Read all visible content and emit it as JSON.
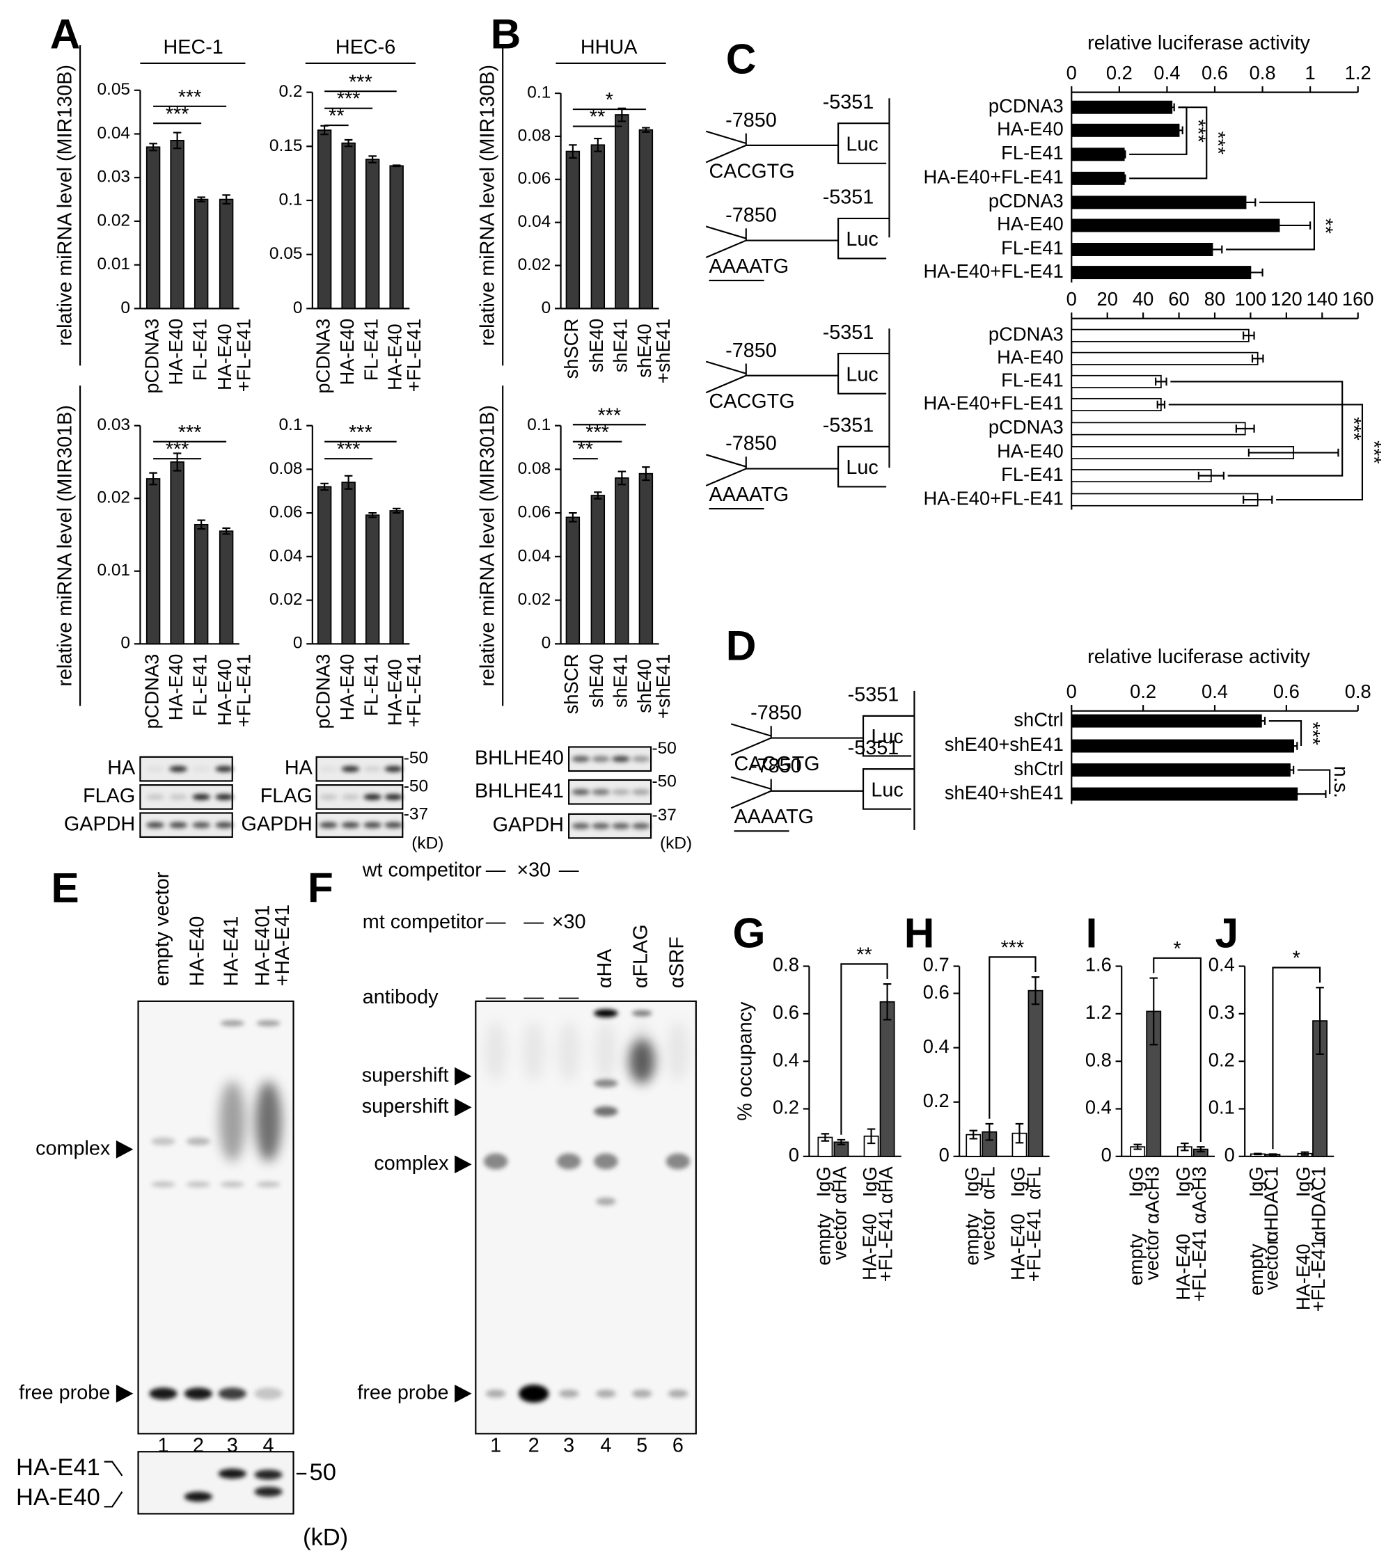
{
  "panel_labels": [
    "A",
    "B",
    "C",
    "D",
    "E",
    "F",
    "G",
    "H",
    "I",
    "J"
  ],
  "chart_data": [
    {
      "type": "bar",
      "title": "HEC-1",
      "ylabel": "relative miRNA level (MIR130B)",
      "categories": [
        "pCDNA3",
        "HA-E40",
        "FL-E41",
        "HA-E40\n+FL-E41"
      ],
      "values": [
        0.037,
        0.0385,
        0.025,
        0.025
      ],
      "errors": [
        0.0008,
        0.0018,
        0.0005,
        0.001
      ],
      "color": "#3a3a3a",
      "ylim": [
        0,
        0.05
      ],
      "yticks": [
        0,
        0.01,
        0.02,
        0.03,
        0.04,
        0.05
      ],
      "sig": [
        {
          "label": "***",
          "pair": [
            0,
            2
          ]
        },
        {
          "label": "***",
          "pair": [
            0,
            3
          ]
        }
      ]
    },
    {
      "type": "bar",
      "title": "HEC-6",
      "categories": [
        "pCDNA3",
        "HA-E40",
        "FL-E41",
        "HA-E40\n+FL-E41"
      ],
      "values": [
        0.165,
        0.153,
        0.138,
        0.132
      ],
      "errors": [
        0.004,
        0.003,
        0.003,
        0.0005
      ],
      "color": "#3a3a3a",
      "ylim": [
        0,
        0.2
      ],
      "yticks": [
        0,
        0.05,
        0.1,
        0.15,
        0.2
      ],
      "sig": [
        {
          "label": "**",
          "pair": [
            0,
            1
          ]
        },
        {
          "label": "***",
          "pair": [
            0,
            2
          ]
        },
        {
          "label": "***",
          "pair": [
            0,
            3
          ]
        }
      ]
    },
    {
      "type": "bar",
      "title": "HHUA",
      "ylabel": "relative miRNA level (MIR130B)",
      "categories": [
        "shSCR",
        "shE40",
        "shE41",
        "shE40\n+shE41"
      ],
      "values": [
        0.073,
        0.076,
        0.09,
        0.083
      ],
      "errors": [
        0.003,
        0.003,
        0.003,
        0.001
      ],
      "color": "#3a3a3a",
      "ylim": [
        0,
        0.1
      ],
      "yticks": [
        0,
        0.02,
        0.04,
        0.06,
        0.08,
        0.1
      ],
      "sig": [
        {
          "label": "**",
          "pair": [
            0,
            2
          ]
        },
        {
          "label": "*",
          "pair": [
            0,
            3
          ]
        }
      ]
    },
    {
      "type": "bar",
      "ylabel": "relative miRNA level (MIR301B)",
      "categories": [
        "pCDNA3",
        "HA-E40",
        "FL-E41",
        "HA-E40\n+FL-E41"
      ],
      "values": [
        0.0227,
        0.025,
        0.0164,
        0.0155
      ],
      "errors": [
        0.0008,
        0.0012,
        0.0006,
        0.0004
      ],
      "color": "#3a3a3a",
      "ylim": [
        0,
        0.03
      ],
      "yticks": [
        0,
        0.01,
        0.02,
        0.03
      ],
      "sig": [
        {
          "label": "***",
          "pair": [
            0,
            2
          ]
        },
        {
          "label": "***",
          "pair": [
            0,
            3
          ]
        }
      ]
    },
    {
      "type": "bar",
      "categories": [
        "pCDNA3",
        "HA-E40",
        "FL-E41",
        "HA-E40\n+FL-E41"
      ],
      "values": [
        0.072,
        0.074,
        0.059,
        0.061
      ],
      "errors": [
        0.0015,
        0.003,
        0.001,
        0.001
      ],
      "color": "#3a3a3a",
      "ylim": [
        0,
        0.1
      ],
      "yticks": [
        0,
        0.02,
        0.04,
        0.06,
        0.08,
        0.1
      ],
      "sig": [
        {
          "label": "***",
          "pair": [
            0,
            2
          ]
        },
        {
          "label": "***",
          "pair": [
            0,
            3
          ]
        }
      ]
    },
    {
      "type": "bar",
      "ylabel": "relative miRNA level (MIR301B)",
      "categories": [
        "shSCR",
        "shE40",
        "shE41",
        "shE40\n+shE41"
      ],
      "values": [
        0.058,
        0.068,
        0.076,
        0.078
      ],
      "errors": [
        0.002,
        0.0015,
        0.003,
        0.003
      ],
      "color": "#3a3a3a",
      "ylim": [
        0,
        0.1
      ],
      "yticks": [
        0,
        0.02,
        0.04,
        0.06,
        0.08,
        0.1
      ],
      "sig": [
        {
          "label": "**",
          "pair": [
            0,
            1
          ]
        },
        {
          "label": "***",
          "pair": [
            0,
            2
          ]
        },
        {
          "label": "***",
          "pair": [
            0,
            3
          ]
        }
      ]
    },
    {
      "type": "hbar",
      "xlabel": "relative luciferase activity",
      "categories": [
        "pCDNA3",
        "HA-E40",
        "FL-E41",
        "HA-E40+FL-E41",
        "pCDNA3",
        "HA-E40",
        "FL-E41",
        "HA-E40+FL-E41"
      ],
      "values": [
        0.42,
        0.45,
        0.22,
        0.22,
        0.73,
        0.87,
        0.59,
        0.75
      ],
      "errors": [
        0.01,
        0.015,
        0.005,
        0.005,
        0.04,
        0.13,
        0.04,
        0.05
      ],
      "color": "#000000",
      "xlim": [
        0,
        1.2
      ],
      "xticks": [
        0,
        0.2,
        0.4,
        0.6,
        0.8,
        1,
        1.2
      ],
      "sig": [
        {
          "label": "***",
          "pair": [
            0,
            2
          ]
        },
        {
          "label": "***",
          "pair": [
            0,
            3
          ]
        },
        {
          "label": "**",
          "pair": [
            4,
            6
          ]
        }
      ]
    },
    {
      "type": "hbar",
      "categories": [
        "pCDNA3",
        "HA-E40",
        "FL-E41",
        "HA-E40+FL-E41",
        "pCDNA3",
        "HA-E40",
        "FL-E41",
        "HA-E40+FL-E41"
      ],
      "values": [
        99,
        104,
        50,
        50,
        97,
        124,
        78,
        104
      ],
      "errors": [
        3,
        3,
        3,
        2,
        5,
        25,
        7,
        8
      ],
      "color": "#ffffff",
      "xlim": [
        0,
        160
      ],
      "xticks": [
        0,
        20,
        40,
        60,
        80,
        100,
        120,
        140,
        160
      ],
      "sig": [
        {
          "label": "***",
          "pair": [
            2,
            6
          ]
        },
        {
          "label": "***",
          "pair": [
            3,
            7
          ]
        }
      ]
    },
    {
      "type": "hbar",
      "xlabel": "relative luciferase activity",
      "categories": [
        "shCtrl",
        "shE40+shE41",
        "shCtrl",
        "shE40+shE41"
      ],
      "values": [
        0.53,
        0.62,
        0.61,
        0.63
      ],
      "errors": [
        0.01,
        0.01,
        0.01,
        0.08
      ],
      "color": "#000000",
      "xlim": [
        0,
        0.8
      ],
      "xticks": [
        0,
        0.2,
        0.4,
        0.6,
        0.8
      ],
      "sig": [
        {
          "label": "***",
          "pair": [
            0,
            1
          ]
        },
        {
          "label": "n.s.",
          "pair": [
            2,
            3
          ]
        }
      ]
    },
    {
      "type": "bar",
      "ylabel": "% occupancy",
      "categories": [
        "IgG",
        "αHA",
        "IgG",
        "αHA"
      ],
      "groups": [
        "empty\nvector",
        "HA-E40\n+FL-E41"
      ],
      "values": [
        0.08,
        0.06,
        0.085,
        0.65
      ],
      "errors": [
        0.015,
        0.01,
        0.03,
        0.075
      ],
      "colors": [
        "#ffffff",
        "#4a4a4a",
        "#ffffff",
        "#4a4a4a"
      ],
      "ylim": [
        0,
        0.8
      ],
      "yticks": [
        0,
        0.2,
        0.4,
        0.6,
        0.8
      ],
      "sig": [
        {
          "label": "**",
          "pair": [
            1,
            3
          ]
        }
      ]
    },
    {
      "type": "bar",
      "categories": [
        "IgG",
        "αFL",
        "IgG",
        "αFL"
      ],
      "groups": [
        "empty\nvector",
        "HA-E40\n+FL-E41"
      ],
      "values": [
        0.08,
        0.09,
        0.085,
        0.61
      ],
      "errors": [
        0.015,
        0.03,
        0.035,
        0.05
      ],
      "colors": [
        "#ffffff",
        "#4a4a4a",
        "#ffffff",
        "#4a4a4a"
      ],
      "ylim": [
        0,
        0.7
      ],
      "yticks": [
        0,
        0.2,
        0.4,
        0.6,
        0.7
      ],
      "sig": [
        {
          "label": "***",
          "pair": [
            1,
            3
          ]
        }
      ]
    },
    {
      "type": "bar",
      "categories": [
        "IgG",
        "αAcH3",
        "IgG",
        "αAcH3"
      ],
      "groups": [
        "empty\nvector",
        "HA-E40\n+FL-E41"
      ],
      "values": [
        0.08,
        1.22,
        0.08,
        0.06
      ],
      "errors": [
        0.02,
        0.28,
        0.03,
        0.02
      ],
      "colors": [
        "#ffffff",
        "#4a4a4a",
        "#ffffff",
        "#4a4a4a"
      ],
      "ylim": [
        0,
        1.6
      ],
      "yticks": [
        0,
        0.4,
        0.8,
        1.2,
        1.6
      ],
      "sig": [
        {
          "label": "*",
          "pair": [
            1,
            3
          ]
        }
      ]
    },
    {
      "type": "bar",
      "categories": [
        "IgG",
        "αHDAC1",
        "IgG",
        "αHDAC1"
      ],
      "groups": [
        "empty\nvector",
        "HA-E40\n+FL-E41"
      ],
      "values": [
        0.005,
        0.004,
        0.006,
        0.285
      ],
      "errors": [
        0.001,
        0.001,
        0.003,
        0.07
      ],
      "colors": [
        "#ffffff",
        "#4a4a4a",
        "#ffffff",
        "#4a4a4a"
      ],
      "ylim": [
        0,
        0.4
      ],
      "yticks": [
        0,
        0.1,
        0.2,
        0.3,
        0.4
      ],
      "sig": [
        {
          "label": "*",
          "pair": [
            1,
            3
          ]
        }
      ]
    }
  ],
  "constructs": [
    {
      "left": "-7850",
      "right": "-5351",
      "box": "Luc",
      "motif": "CACGTG"
    },
    {
      "left": "-7850",
      "right": "-5351",
      "box": "Luc",
      "motif": "AAAATG"
    },
    {
      "left": "-7850",
      "right": "-5351",
      "box": "Luc",
      "motif": "CACGTG"
    },
    {
      "left": "-7850",
      "right": "-5351",
      "box": "Luc",
      "motif": "AAAATG"
    },
    {
      "left": "-7850",
      "right": "-5351",
      "box": "Luc",
      "motif": "CACGTG"
    },
    {
      "left": "-7850",
      "right": "-5351",
      "box": "Luc",
      "motif": "AAAATG"
    }
  ],
  "blots": [
    {
      "rows": [
        "HA",
        "FLAG",
        "GAPDH"
      ]
    },
    {
      "rows": [
        "HA",
        "FLAG",
        "GAPDH"
      ],
      "markers": [
        "-50",
        "-50",
        "-37"
      ],
      "unit": "(kD)"
    },
    {
      "rows": [
        "BHLHE40",
        "BHLHE41",
        "GAPDH"
      ],
      "markers": [
        "-50",
        "-50",
        "-37"
      ],
      "unit": "(kD)"
    }
  ],
  "emsa_e": {
    "lanes": [
      "empty vector",
      "HA-E40",
      "HA-E41",
      "HA-E401\n+HA-E41"
    ],
    "arrows": [
      "complex",
      "free probe"
    ],
    "lane_numbers": [
      "1",
      "2",
      "3",
      "4"
    ],
    "blot_rows": [
      "HA-E41",
      "HA-E40"
    ],
    "marker": "50",
    "unit": "(kD)"
  },
  "emsa_f": {
    "wt": {
      "label": "wt competitor",
      "lanes": [
        "—",
        "×30",
        "—"
      ]
    },
    "mt": {
      "label": "mt competitor",
      "lanes": [
        "—",
        "—",
        "×30"
      ]
    },
    "antibody": {
      "label": "antibody",
      "lanes": [
        "—",
        "—",
        "—",
        "αHA",
        "αFLAG",
        "αSRF"
      ]
    },
    "arrows": [
      "supershift",
      "supershift",
      "complex",
      "free probe"
    ],
    "lane_numbers": [
      "1",
      "2",
      "3",
      "4",
      "5",
      "6"
    ]
  }
}
